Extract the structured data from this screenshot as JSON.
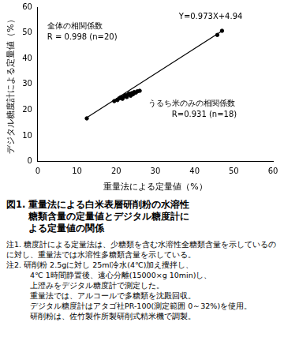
{
  "chart_data": {
    "type": "scatter",
    "xlabel": "重量法による定量値（%）",
    "ylabel": "デジタル糖度計による定量値（%）",
    "xlim": [
      0,
      60
    ],
    "xticks": [
      0,
      10,
      20,
      30,
      40,
      50,
      60
    ],
    "ylim": [
      0,
      60
    ],
    "yticks": [
      0,
      10,
      20,
      30,
      40,
      50,
      60
    ],
    "grid": false,
    "series": [
      {
        "type": "scatter",
        "color": "#000000",
        "marker": "circle",
        "x": [
          12.5,
          19.5,
          20.3,
          20.8,
          21.2,
          21.6,
          22.0,
          22.3,
          22.7,
          23.0,
          23.3,
          23.7,
          24.0,
          24.3,
          24.6,
          25.0,
          25.4,
          26.0,
          45.8,
          47.0
        ],
        "values": [
          16.8,
          23.5,
          23.9,
          24.6,
          25.0,
          24.4,
          25.3,
          25.8,
          25.1,
          26.0,
          26.4,
          25.6,
          26.6,
          26.2,
          27.0,
          26.8,
          27.3,
          27.5,
          49.2,
          50.8
        ]
      },
      {
        "type": "line",
        "color": "#000000",
        "line_style": "solid",
        "x": [
          12.5,
          47.0
        ],
        "values": [
          17.1,
          50.7
        ]
      }
    ],
    "annotations": [
      "Y=0.973X+4.94",
      "全体の相関係数",
      "R = 0.998 (n=20)",
      "うるち米のみの相関係数",
      "R=0.931 (n=18)"
    ],
    "caption": [
      "図1. 重量法による白米表層研削粉の水溶性",
      "糖類含量の定量値とデジタル糖度計に",
      "よる定量値の関係"
    ],
    "notes": [
      {
        "text": "注1. 糖度計による定量法は、少糖類を含む水溶性全糖類含量を示しているのに対し、重量法では水溶性多糖類含量を示している。",
        "indent": false
      },
      {
        "text": "注2. 研削粉 2.5gに対し 25ml冷水(4℃)加え攪拌し、",
        "indent": false
      },
      {
        "text": "4℃ 1時間静置後、遠心分離(15000×g 10min)し、",
        "indent": true
      },
      {
        "text": "上澄みをデジタル糖度計で測定した。",
        "indent": true
      },
      {
        "text": "重量法では、アルコールで多糖類を沈殿回収。",
        "indent": true
      },
      {
        "text": "デジタル糖度計はアタゴ社PR-100(測定範囲 0～32%)を使用。",
        "indent": true
      },
      {
        "text": "研削粉は、佐竹製作所製研削式精米機で調製。",
        "indent": true
      }
    ]
  }
}
